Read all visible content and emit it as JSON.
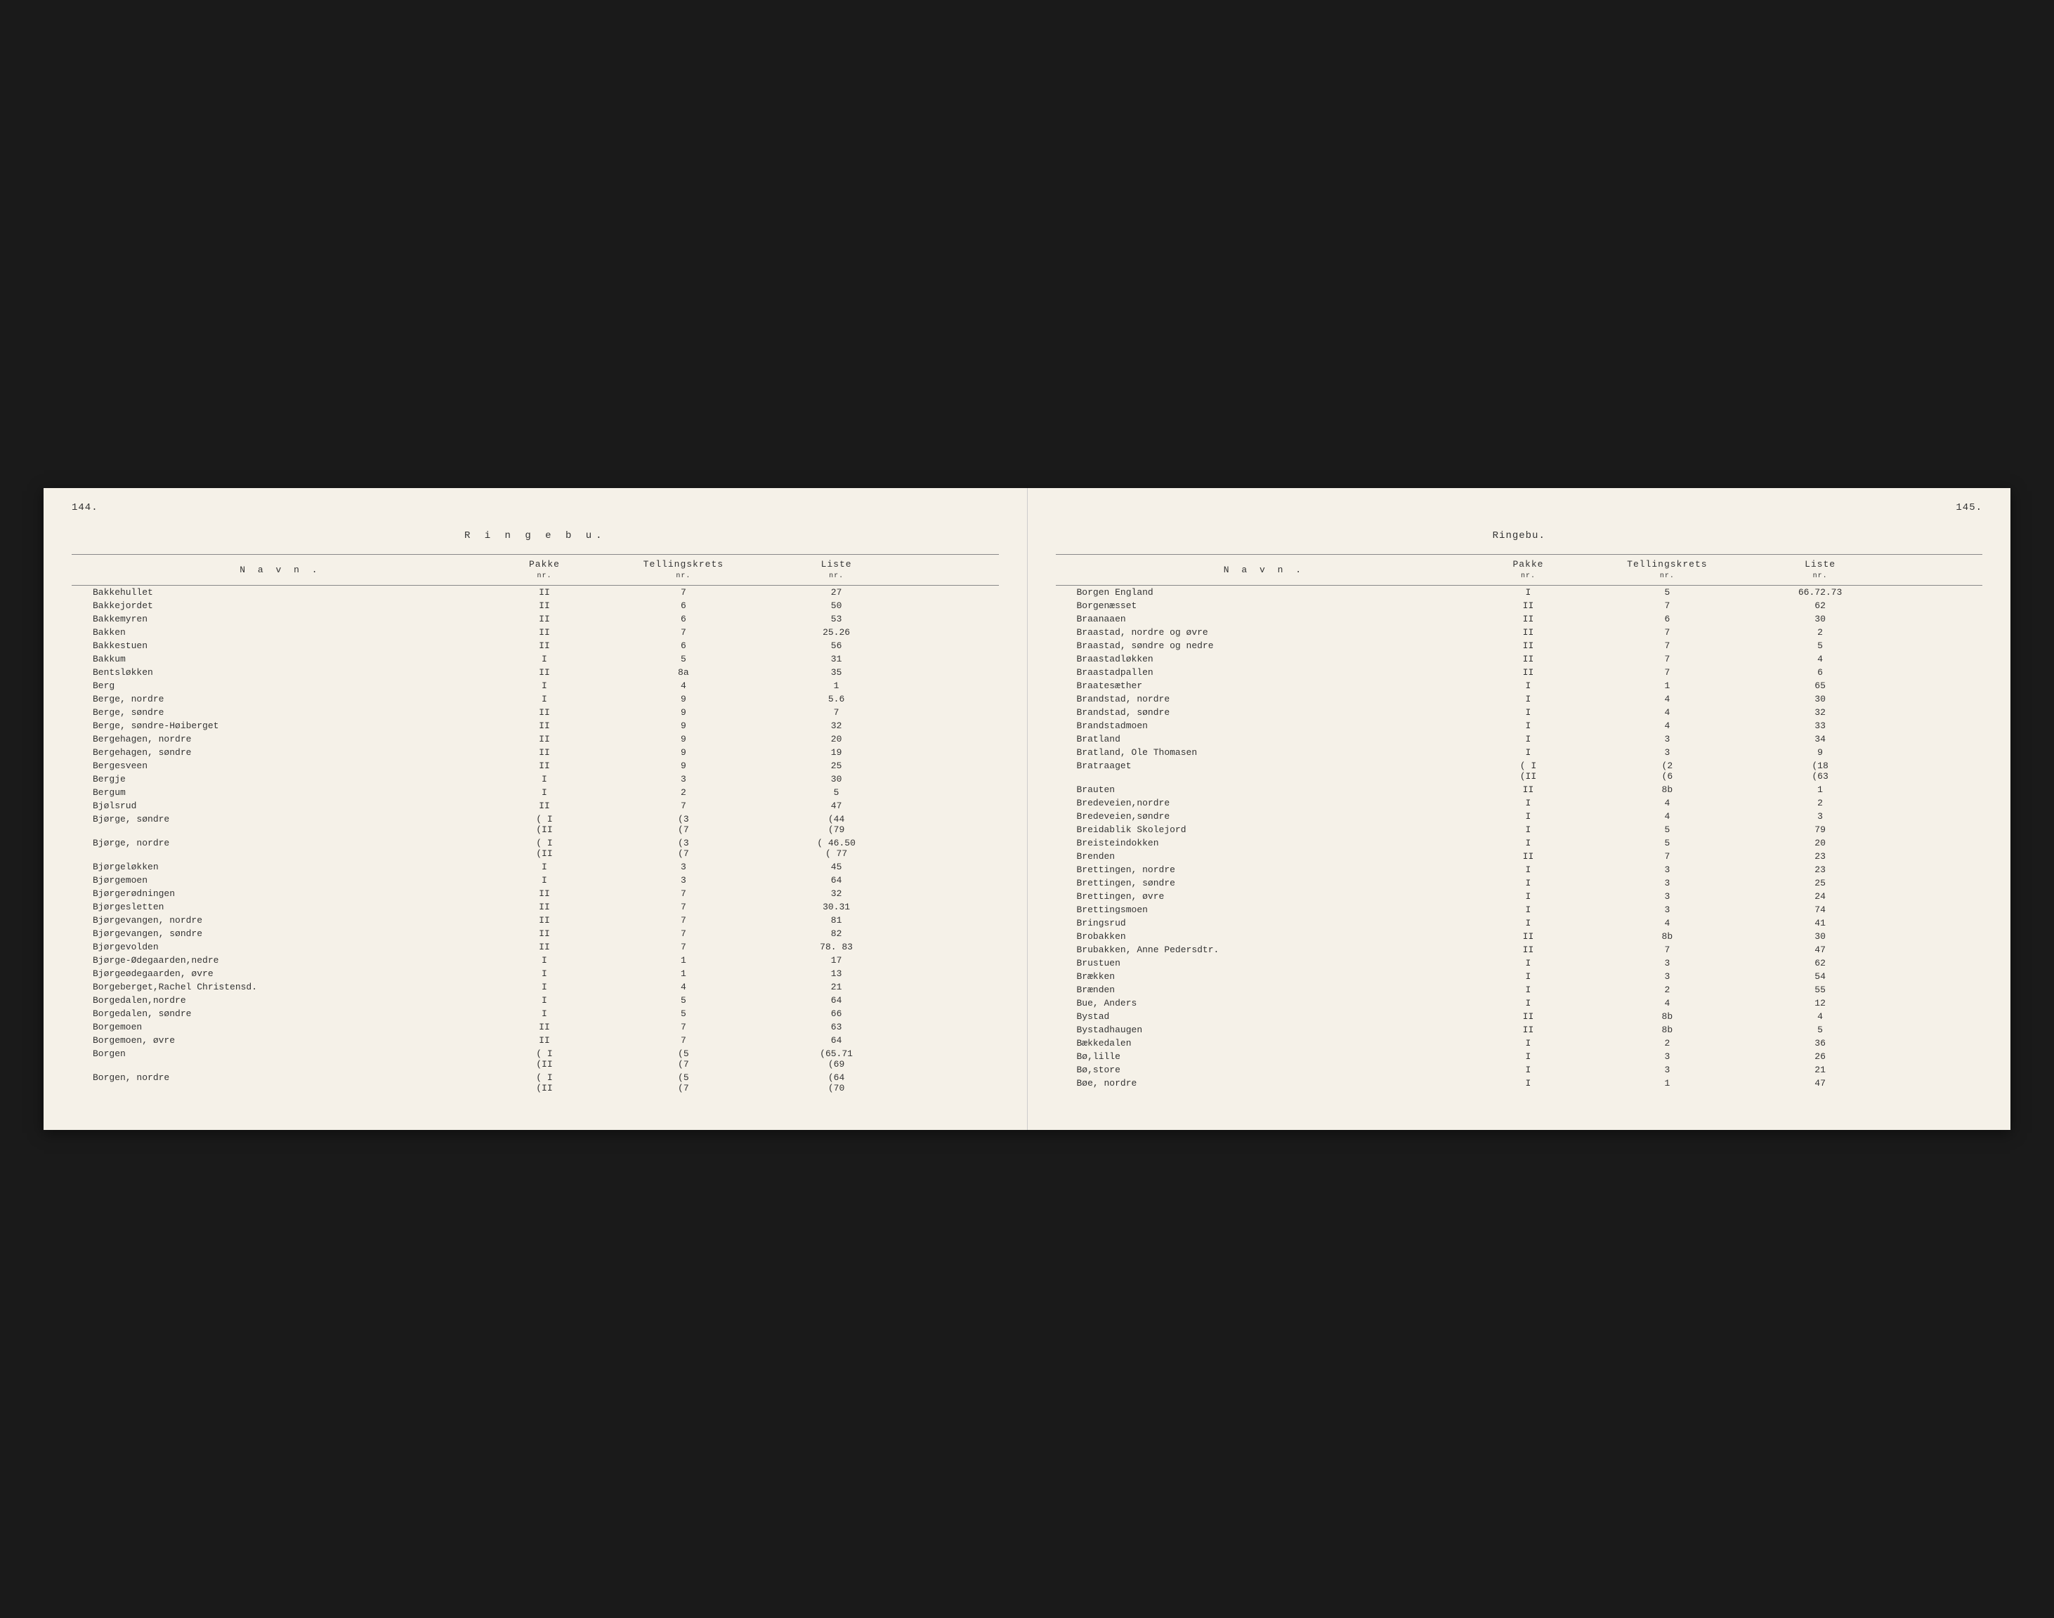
{
  "background_color": "#1a1a1a",
  "paper_color": "#f5f1e8",
  "text_color": "#333333",
  "font_family": "Courier New",
  "left_page": {
    "page_number": "144.",
    "district": "R i n g e b u.",
    "headers": {
      "name": "N a v n .",
      "pakke": "Pakke",
      "tellings": "Tellingskrets",
      "liste": "Liste",
      "sub": "nr."
    },
    "rows": [
      {
        "name": "Bakkehullet",
        "pakke": "II",
        "tellings": "7",
        "liste": "27"
      },
      {
        "name": "Bakkejordet",
        "pakke": "II",
        "tellings": "6",
        "liste": "50"
      },
      {
        "name": "Bakkemyren",
        "pakke": "II",
        "tellings": "6",
        "liste": "53"
      },
      {
        "name": "Bakken",
        "pakke": "II",
        "tellings": "7",
        "liste": "25.26"
      },
      {
        "name": "Bakkestuen",
        "pakke": "II",
        "tellings": "6",
        "liste": "56"
      },
      {
        "name": "Bakkum",
        "pakke": "I",
        "tellings": "5",
        "liste": "31"
      },
      {
        "name": "Bentsløkken",
        "pakke": "II",
        "tellings": "8a",
        "liste": "35"
      },
      {
        "name": "Berg",
        "pakke": "I",
        "tellings": "4",
        "liste": "1"
      },
      {
        "name": "Berge, nordre",
        "pakke": "I",
        "tellings": "9",
        "liste": "5.6"
      },
      {
        "name": "Berge, søndre",
        "pakke": "II",
        "tellings": "9",
        "liste": "7"
      },
      {
        "name": "Berge, søndre-Høiberget",
        "pakke": "II",
        "tellings": "9",
        "liste": "32"
      },
      {
        "name": "Bergehagen, nordre",
        "pakke": "II",
        "tellings": "9",
        "liste": "20"
      },
      {
        "name": "Bergehagen, søndre",
        "pakke": "II",
        "tellings": "9",
        "liste": "19"
      },
      {
        "name": "Bergesveen",
        "pakke": "II",
        "tellings": "9",
        "liste": "25"
      },
      {
        "name": "Bergje",
        "pakke": "I",
        "tellings": "3",
        "liste": "30"
      },
      {
        "name": "Bergum",
        "pakke": "I",
        "tellings": "2",
        "liste": "5"
      },
      {
        "name": "Bjølsrud",
        "pakke": "II",
        "tellings": "7",
        "liste": "47"
      },
      {
        "name": "Bjørge, søndre",
        "pakke": "( I\n(II",
        "tellings": "(3\n(7",
        "liste": "(44\n(79"
      },
      {
        "name": "Bjørge, nordre",
        "pakke": "( I\n(II",
        "tellings": "(3\n(7",
        "liste": "( 46.50\n( 77"
      },
      {
        "name": "Bjørgeløkken",
        "pakke": "I",
        "tellings": "3",
        "liste": "45"
      },
      {
        "name": "Bjørgemoen",
        "pakke": "I",
        "tellings": "3",
        "liste": "64"
      },
      {
        "name": "Bjørgerødningen",
        "pakke": "II",
        "tellings": "7",
        "liste": "32"
      },
      {
        "name": "Bjørgesletten",
        "pakke": "II",
        "tellings": "7",
        "liste": "30.31"
      },
      {
        "name": "Bjørgevangen, nordre",
        "pakke": "II",
        "tellings": "7",
        "liste": "81"
      },
      {
        "name": "Bjørgevangen, søndre",
        "pakke": "II",
        "tellings": "7",
        "liste": "82"
      },
      {
        "name": "Bjørgevolden",
        "pakke": "II",
        "tellings": "7",
        "liste": "78. 83"
      },
      {
        "name": "Bjørge-Ødegaarden,nedre",
        "pakke": "I",
        "tellings": "1",
        "liste": "17"
      },
      {
        "name": "Bjørgeødegaarden, øvre",
        "pakke": "I",
        "tellings": "1",
        "liste": "13"
      },
      {
        "name": "Borgeberget,Rachel Christensd.",
        "pakke": "I",
        "tellings": "4",
        "liste": "21"
      },
      {
        "name": "Borgedalen,nordre",
        "pakke": "I",
        "tellings": "5",
        "liste": "64"
      },
      {
        "name": "Borgedalen, søndre",
        "pakke": "I",
        "tellings": "5",
        "liste": "66"
      },
      {
        "name": "Borgemoen",
        "pakke": "II",
        "tellings": "7",
        "liste": "63"
      },
      {
        "name": "Borgemoen, øvre",
        "pakke": "II",
        "tellings": "7",
        "liste": "64"
      },
      {
        "name": "Borgen",
        "pakke": "( I\n(II",
        "tellings": "(5\n(7",
        "liste": "(65.71\n(69"
      },
      {
        "name": "Borgen, nordre",
        "pakke": "( I\n(II",
        "tellings": "(5\n(7",
        "liste": "(64\n(70"
      }
    ]
  },
  "right_page": {
    "page_number": "145.",
    "district": "Ringebu.",
    "headers": {
      "name": "N a v n .",
      "pakke": "Pakke",
      "tellings": "Tellingskrets",
      "liste": "Liste",
      "sub": "nr."
    },
    "rows": [
      {
        "name": "Borgen England",
        "pakke": "I",
        "tellings": "5",
        "liste": "66.72.73"
      },
      {
        "name": "Borgenæsset",
        "pakke": "II",
        "tellings": "7",
        "liste": "62"
      },
      {
        "name": "Braanaaen",
        "pakke": "II",
        "tellings": "6",
        "liste": "30"
      },
      {
        "name": "Braastad, nordre og øvre",
        "pakke": "II",
        "tellings": "7",
        "liste": "2"
      },
      {
        "name": "Braastad, søndre og nedre",
        "pakke": "II",
        "tellings": "7",
        "liste": "5"
      },
      {
        "name": "Braastadløkken",
        "pakke": "II",
        "tellings": "7",
        "liste": "4"
      },
      {
        "name": "Braastadpallen",
        "pakke": "II",
        "tellings": "7",
        "liste": "6"
      },
      {
        "name": "Braatesæther",
        "pakke": "I",
        "tellings": "1",
        "liste": "65"
      },
      {
        "name": "Brandstad, nordre",
        "pakke": "I",
        "tellings": "4",
        "liste": "30"
      },
      {
        "name": "Brandstad, søndre",
        "pakke": "I",
        "tellings": "4",
        "liste": "32"
      },
      {
        "name": "Brandstadmoen",
        "pakke": "I",
        "tellings": "4",
        "liste": "33"
      },
      {
        "name": "Bratland",
        "pakke": "I",
        "tellings": "3",
        "liste": "34"
      },
      {
        "name": "Bratland, Ole Thomasen",
        "pakke": "I",
        "tellings": "3",
        "liste": "9"
      },
      {
        "name": "Bratraaget",
        "pakke": "( I\n(II",
        "tellings": "(2\n(6",
        "liste": "(18\n(63"
      },
      {
        "name": "Brauten",
        "pakke": "II",
        "tellings": "8b",
        "liste": "1"
      },
      {
        "name": "Bredeveien,nordre",
        "pakke": "I",
        "tellings": "4",
        "liste": "2"
      },
      {
        "name": "Bredeveien,søndre",
        "pakke": "I",
        "tellings": "4",
        "liste": "3"
      },
      {
        "name": "Breidablik Skolejord",
        "pakke": "I",
        "tellings": "5",
        "liste": "79"
      },
      {
        "name": "Breisteindokken",
        "pakke": "I",
        "tellings": "5",
        "liste": "20"
      },
      {
        "name": "Brenden",
        "pakke": "II",
        "tellings": "7",
        "liste": "23"
      },
      {
        "name": "Brettingen, nordre",
        "pakke": "I",
        "tellings": "3",
        "liste": "23"
      },
      {
        "name": "Brettingen, søndre",
        "pakke": "I",
        "tellings": "3",
        "liste": "25"
      },
      {
        "name": "Brettingen, øvre",
        "pakke": "I",
        "tellings": "3",
        "liste": "24"
      },
      {
        "name": "Brettingsmoen",
        "pakke": "I",
        "tellings": "3",
        "liste": "74"
      },
      {
        "name": "Bringsrud",
        "pakke": "I",
        "tellings": "4",
        "liste": "41"
      },
      {
        "name": "Brobakken",
        "pakke": "II",
        "tellings": "8b",
        "liste": "30"
      },
      {
        "name": "Brubakken, Anne Pedersdtr.",
        "pakke": "II",
        "tellings": "7",
        "liste": "47"
      },
      {
        "name": "Brustuen",
        "pakke": "I",
        "tellings": "3",
        "liste": "62"
      },
      {
        "name": "Brækken",
        "pakke": "I",
        "tellings": "3",
        "liste": "54"
      },
      {
        "name": "Brænden",
        "pakke": "I",
        "tellings": "2",
        "liste": "55"
      },
      {
        "name": "Bue, Anders",
        "pakke": "I",
        "tellings": "4",
        "liste": "12"
      },
      {
        "name": "Bystad",
        "pakke": "II",
        "tellings": "8b",
        "liste": "4"
      },
      {
        "name": "Bystadhaugen",
        "pakke": "II",
        "tellings": "8b",
        "liste": "5"
      },
      {
        "name": "Bækkedalen",
        "pakke": "I",
        "tellings": "2",
        "liste": "36"
      },
      {
        "name": "Bø,lille",
        "pakke": "I",
        "tellings": "3",
        "liste": "26"
      },
      {
        "name": "Bø,store",
        "pakke": "I",
        "tellings": "3",
        "liste": "21"
      },
      {
        "name": "Bøe, nordre",
        "pakke": "I",
        "tellings": "1",
        "liste": "47"
      }
    ]
  }
}
